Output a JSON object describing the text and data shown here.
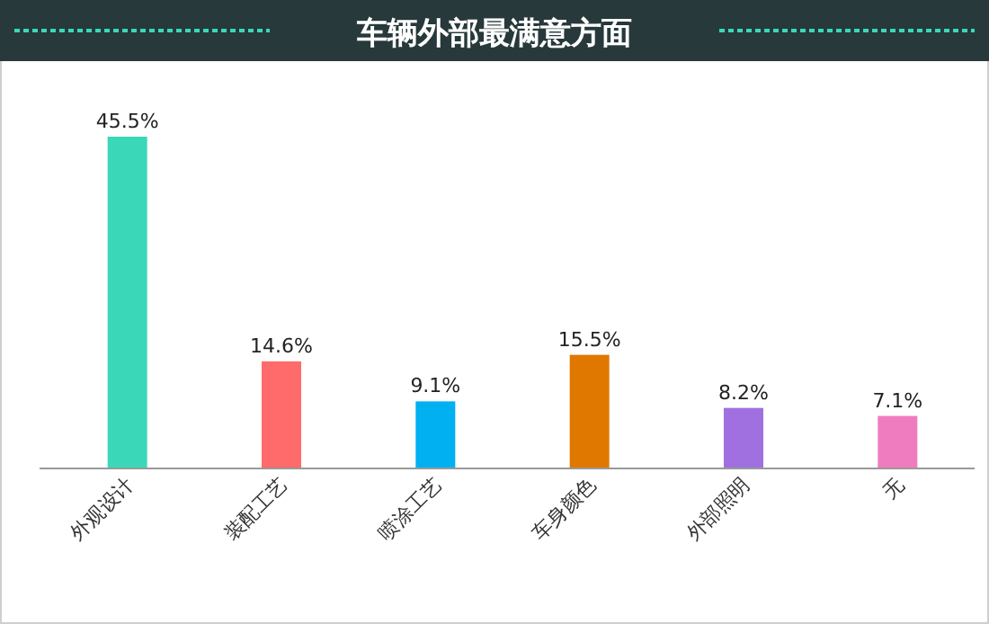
{
  "chart_data": {
    "type": "bar",
    "title": "车辆外部最满意方面",
    "categories": [
      "外观设计",
      "装配工艺",
      "喷涂工艺",
      "车身颜色",
      "外部照明",
      "无"
    ],
    "values": [
      45.5,
      14.6,
      9.1,
      15.5,
      8.2,
      7.1
    ],
    "value_labels": [
      "45.5%",
      "14.6%",
      "9.1%",
      "15.5%",
      "8.2%",
      "7.1%"
    ],
    "colors": [
      "#3ad8b8",
      "#ff6a6a",
      "#00b0f0",
      "#e07800",
      "#a070e0",
      "#f07cc0"
    ]
  }
}
